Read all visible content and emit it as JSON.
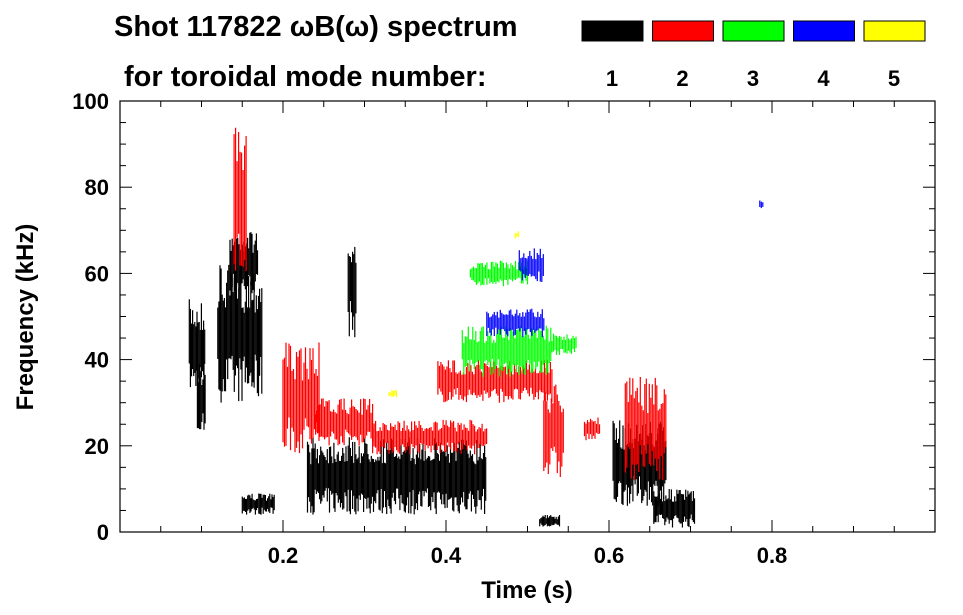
{
  "chart_data": {
    "type": "heatmap",
    "title_line1": "Shot 117822 ωB(ω) spectrum",
    "title_line2": "for toroidal mode number:",
    "xlabel": "Time (s)",
    "ylabel": "Frequency (kHz)",
    "xlim": [
      0.0,
      1.0
    ],
    "ylim": [
      0,
      100
    ],
    "x_ticks": [
      "0.2",
      "0.4",
      "0.6",
      "0.8"
    ],
    "x_tick_values": [
      0.2,
      0.4,
      0.6,
      0.8
    ],
    "y_ticks": [
      "0",
      "20",
      "40",
      "60",
      "80",
      "100"
    ],
    "y_tick_values": [
      0,
      20,
      40,
      60,
      80,
      100
    ],
    "legend_placement": "top",
    "legend": [
      {
        "label": "1",
        "color": "#000000"
      },
      {
        "label": "2",
        "color": "#ff0000"
      },
      {
        "label": "3",
        "color": "#00ff00"
      },
      {
        "label": "4",
        "color": "#0000ff"
      },
      {
        "label": "5",
        "color": "#ffff00"
      }
    ],
    "series": [
      {
        "mode": 1,
        "color": "#000000",
        "regions": [
          {
            "t": [
              0.085,
              0.105
            ],
            "f": [
              32,
              54
            ]
          },
          {
            "t": [
              0.095,
              0.105
            ],
            "f": [
              22,
              40
            ]
          },
          {
            "t": [
              0.135,
              0.17
            ],
            "f": [
              55,
              70
            ]
          },
          {
            "t": [
              0.12,
              0.175
            ],
            "f": [
              30,
              62
            ]
          },
          {
            "t": [
              0.15,
              0.19
            ],
            "f": [
              4,
              9
            ]
          },
          {
            "t": [
              0.23,
              0.45
            ],
            "f": [
              4,
              22
            ]
          },
          {
            "t": [
              0.28,
              0.29
            ],
            "f": [
              45,
              70
            ]
          },
          {
            "t": [
              0.515,
              0.54
            ],
            "f": [
              1,
              4
            ]
          },
          {
            "t": [
              0.605,
              0.67
            ],
            "f": [
              6,
              26
            ]
          },
          {
            "t": [
              0.655,
              0.705
            ],
            "f": [
              1,
              10
            ]
          }
        ]
      },
      {
        "mode": 2,
        "color": "#ff0000",
        "regions": [
          {
            "t": [
              0.2,
              0.245
            ],
            "f": [
              18,
              44
            ]
          },
          {
            "t": [
              0.24,
              0.31
            ],
            "f": [
              20,
              31
            ]
          },
          {
            "t": [
              0.31,
              0.45
            ],
            "f": [
              18,
              26
            ]
          },
          {
            "t": [
              0.39,
              0.53
            ],
            "f": [
              30,
              40
            ]
          },
          {
            "t": [
              0.52,
              0.545
            ],
            "f": [
              12,
              35
            ]
          },
          {
            "t": [
              0.57,
              0.59
            ],
            "f": [
              21,
              27
            ]
          },
          {
            "t": [
              0.62,
              0.67
            ],
            "f": [
              12,
              36
            ]
          },
          {
            "t": [
              0.14,
              0.155
            ],
            "f": [
              58,
              94
            ]
          }
        ]
      },
      {
        "mode": 3,
        "color": "#00ff00",
        "regions": [
          {
            "t": [
              0.42,
              0.53
            ],
            "f": [
              36,
              48
            ]
          },
          {
            "t": [
              0.43,
              0.5
            ],
            "f": [
              57,
              63
            ]
          },
          {
            "t": [
              0.53,
              0.56
            ],
            "f": [
              41,
              46
            ]
          }
        ]
      },
      {
        "mode": 4,
        "color": "#0000ff",
        "regions": [
          {
            "t": [
              0.45,
              0.52
            ],
            "f": [
              45,
              52
            ]
          },
          {
            "t": [
              0.49,
              0.52
            ],
            "f": [
              58,
              66
            ]
          },
          {
            "t": [
              0.785,
              0.79
            ],
            "f": [
              75,
              77
            ]
          }
        ]
      },
      {
        "mode": 5,
        "color": "#ffff00",
        "regions": [
          {
            "t": [
              0.485,
              0.49
            ],
            "f": [
              68,
              70
            ]
          },
          {
            "t": [
              0.33,
              0.34
            ],
            "f": [
              31,
              33
            ]
          }
        ]
      }
    ]
  }
}
